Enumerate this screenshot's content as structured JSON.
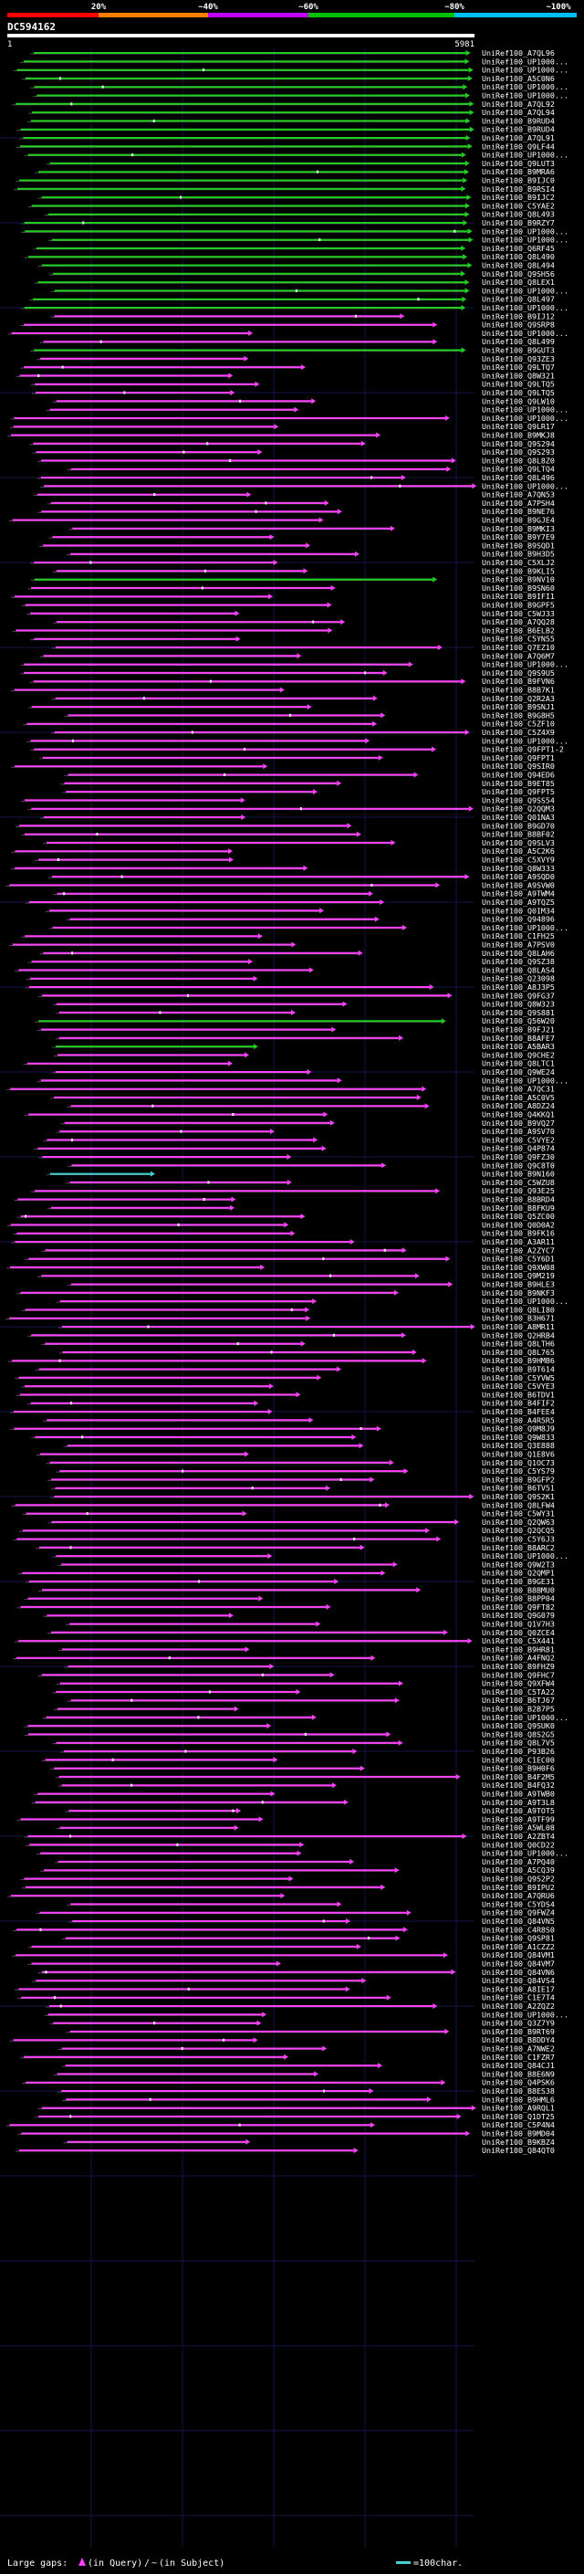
{
  "title": "DC594162",
  "scale": {
    "labels": [
      "20%",
      "~40%",
      "~60%",
      "~80%",
      "~100%"
    ],
    "colors": [
      "#ff0000",
      "#ff8000",
      "#c000ff",
      "#00c000",
      "#00c0ff"
    ]
  },
  "query_ruler": {
    "start": "1",
    "end": "5981"
  },
  "colors": {
    "background": "#000000",
    "grid": "#15154a",
    "ruler": "#ffffff",
    "text": "#ffffff",
    "magenta": "#ff40ff",
    "green": "#20d020",
    "cyan": "#40d0d0",
    "gap": "#606060"
  },
  "legend": {
    "large_gaps_label": "Large gaps:",
    "in_query": "(in Query)",
    "separator": "/",
    "in_subject": "(in Subject)",
    "scale_label": "=100char."
  },
  "hits": [
    {
      "label": "UniRef100_A7QL96",
      "color": "green"
    },
    {
      "label": "UniRef100_UP1000...",
      "color": "green"
    },
    {
      "label": "UniRef100_UP1000...",
      "color": "green"
    },
    {
      "label": "UniRef100_A5C0N6",
      "color": "green"
    },
    {
      "label": "UniRef100_UP1000...",
      "color": "green"
    },
    {
      "label": "UniRef100_UP1000...",
      "color": "green"
    },
    {
      "label": "UniRef100_A7QL92",
      "color": "green"
    },
    {
      "label": "UniRef100_A7QL94",
      "color": "green"
    },
    {
      "label": "UniRef100_B9RUD4",
      "color": "green"
    },
    {
      "label": "UniRef100_B9RUD4",
      "color": "green"
    },
    {
      "label": "UniRef100_A7QL91",
      "color": "green"
    },
    {
      "label": "UniRef100_Q9LF44",
      "color": "green"
    },
    {
      "label": "UniRef100_UP1000...",
      "color": "green"
    },
    {
      "label": "UniRef100_Q9LUT3",
      "color": "green"
    },
    {
      "label": "UniRef100_B9MRA6",
      "color": "green"
    },
    {
      "label": "UniRef100_B9IJC0",
      "color": "green"
    },
    {
      "label": "UniRef100_B9RSI4",
      "color": "green"
    },
    {
      "label": "UniRef100_B9IJC2",
      "color": "green"
    },
    {
      "label": "UniRef100_C5YAE2",
      "color": "green"
    },
    {
      "label": "UniRef100_Q8L493",
      "color": "green"
    },
    {
      "label": "UniRef100_B9RZY7",
      "color": "green"
    },
    {
      "label": "UniRef100_UP1000...",
      "color": "green"
    },
    {
      "label": "UniRef100_UP1000...",
      "color": "green"
    },
    {
      "label": "UniRef100_Q6RF45",
      "color": "green"
    },
    {
      "label": "UniRef100_Q8L490",
      "color": "green"
    },
    {
      "label": "UniRef100_Q8L494",
      "color": "green"
    },
    {
      "label": "UniRef100_Q9SH56",
      "color": "green"
    },
    {
      "label": "UniRef100_Q8LEX1",
      "color": "green"
    },
    {
      "label": "UniRef100_UP1000...",
      "color": "green"
    },
    {
      "label": "UniRef100_Q8L497",
      "color": "green"
    },
    {
      "label": "UniRef100_UP1000...",
      "color": "green"
    },
    {
      "label": "UniRef100_B9IJ12",
      "color": "magenta"
    },
    {
      "label": "UniRef100_Q9SRP8",
      "color": "magenta"
    },
    {
      "label": "UniRef100_UP1000...",
      "color": "magenta"
    },
    {
      "label": "UniRef100_Q8L499",
      "color": "magenta"
    },
    {
      "label": "UniRef100_B9GUT3",
      "color": "green"
    },
    {
      "label": "UniRef100_Q93ZE3",
      "color": "magenta"
    },
    {
      "label": "UniRef100_Q9LTQ7",
      "color": "magenta"
    },
    {
      "label": "UniRef100_Q8W321",
      "color": "magenta"
    },
    {
      "label": "UniRef100_Q9LTQ5",
      "color": "magenta"
    },
    {
      "label": "UniRef100_Q9LTQ5",
      "color": "magenta"
    },
    {
      "label": "UniRef100_Q9LW10",
      "color": "magenta"
    },
    {
      "label": "UniRef100_UP1000...",
      "color": "magenta"
    },
    {
      "label": "UniRef100_UP1000...",
      "color": "magenta"
    },
    {
      "label": "UniRef100_Q9LR17",
      "color": "magenta"
    },
    {
      "label": "UniRef100_B9MKJ8",
      "color": "magenta"
    },
    {
      "label": "UniRef100_Q9S294",
      "color": "magenta"
    },
    {
      "label": "UniRef100_Q9S293",
      "color": "magenta"
    },
    {
      "label": "UniRef100_Q8L8Z0",
      "color": "magenta"
    },
    {
      "label": "UniRef100_Q9LTQ4",
      "color": "magenta"
    },
    {
      "label": "UniRef100_Q8L496",
      "color": "magenta"
    },
    {
      "label": "UniRef100_UP1000...",
      "color": "magenta"
    },
    {
      "label": "UniRef100_A7QN53",
      "color": "magenta"
    },
    {
      "label": "UniRef100_A7PSH4",
      "color": "magenta"
    },
    {
      "label": "UniRef100_B9NE76",
      "color": "magenta"
    },
    {
      "label": "UniRef100_B9GJE4",
      "color": "magenta"
    },
    {
      "label": "UniRef100_B9MKI3",
      "color": "magenta"
    },
    {
      "label": "UniRef100_B9Y7E9",
      "color": "magenta"
    },
    {
      "label": "UniRef100_B9SQD1",
      "color": "magenta"
    },
    {
      "label": "UniRef100_B9H3D5",
      "color": "magenta"
    },
    {
      "label": "UniRef100_C5XLJ2",
      "color": "magenta"
    },
    {
      "label": "UniRef100_B9KLI5",
      "color": "magenta"
    },
    {
      "label": "UniRef100_B9NV10",
      "color": "green"
    },
    {
      "label": "UniRef100_B9SN60",
      "color": "magenta"
    },
    {
      "label": "UniRef100_B9IFI1",
      "color": "magenta"
    },
    {
      "label": "UniRef100_B9GPF5",
      "color": "magenta"
    },
    {
      "label": "UniRef100_C5WJ33",
      "color": "magenta"
    },
    {
      "label": "UniRef100_A7QQ28",
      "color": "magenta"
    },
    {
      "label": "UniRef100_B6ELB2",
      "color": "magenta"
    },
    {
      "label": "UniRef100_C5YN55",
      "color": "magenta"
    },
    {
      "label": "UniRef100_Q7EZ10",
      "color": "magenta"
    },
    {
      "label": "UniRef100_A7Q6M7",
      "color": "magenta"
    },
    {
      "label": "UniRef100_UP1000...",
      "color": "magenta"
    },
    {
      "label": "UniRef100_Q9S9U5",
      "color": "magenta"
    },
    {
      "label": "UniRef100_B9FVN6",
      "color": "magenta"
    },
    {
      "label": "UniRef100_B8B7K1",
      "color": "magenta"
    },
    {
      "label": "UniRef100_Q2R2A3",
      "color": "magenta"
    },
    {
      "label": "UniRef100_B9SNJ1",
      "color": "magenta"
    },
    {
      "label": "UniRef100_B9G8H5",
      "color": "magenta"
    },
    {
      "label": "UniRef100_C5ZF10",
      "color": "magenta"
    },
    {
      "label": "UniRef100_C5Z4X9",
      "color": "magenta"
    },
    {
      "label": "UniRef100_UP1000...",
      "color": "magenta"
    },
    {
      "label": "UniRef100_Q9FPT1-2",
      "color": "magenta"
    },
    {
      "label": "UniRef100_Q9FPT1",
      "color": "magenta"
    },
    {
      "label": "UniRef100_Q9SIR0",
      "color": "magenta"
    },
    {
      "label": "UniRef100_Q94ED6",
      "color": "magenta"
    },
    {
      "label": "UniRef100_B9ET85",
      "color": "magenta"
    },
    {
      "label": "UniRef100_Q9FPT5",
      "color": "magenta"
    },
    {
      "label": "UniRef100_Q9SS54",
      "color": "magenta"
    },
    {
      "label": "UniRef100_Q2QQM3",
      "color": "magenta"
    },
    {
      "label": "UniRef100_Q01NA3",
      "color": "magenta"
    },
    {
      "label": "UniRef100_B9GD70",
      "color": "magenta"
    },
    {
      "label": "UniRef100_B8BF02",
      "color": "magenta"
    },
    {
      "label": "UniRef100_Q9SLV3",
      "color": "magenta"
    },
    {
      "label": "UniRef100_A5C2K6",
      "color": "magenta"
    },
    {
      "label": "UniRef100_C5XVY9",
      "color": "magenta"
    },
    {
      "label": "UniRef100_Q8W333",
      "color": "magenta"
    },
    {
      "label": "UniRef100_A9SQD0",
      "color": "magenta"
    },
    {
      "label": "UniRef100_A9SVW0",
      "color": "magenta"
    },
    {
      "label": "UniRef100_A9TWM4",
      "color": "magenta"
    },
    {
      "label": "UniRef100_A9TQZ5",
      "color": "magenta"
    },
    {
      "label": "UniRef100_Q0IM34",
      "color": "magenta"
    },
    {
      "label": "UniRef100_Q94896",
      "color": "magenta"
    },
    {
      "label": "UniRef100_UP1000...",
      "color": "magenta"
    },
    {
      "label": "UniRef100_C1FH25",
      "color": "magenta"
    },
    {
      "label": "UniRef100_A7PSV0",
      "color": "magenta"
    },
    {
      "label": "UniRef100_Q8LAH6",
      "color": "magenta"
    },
    {
      "label": "UniRef100_Q9SZ38",
      "color": "magenta"
    },
    {
      "label": "UniRef100_Q8LAS4",
      "color": "magenta"
    },
    {
      "label": "UniRef100_Q23098",
      "color": "magenta"
    },
    {
      "label": "UniRef100_A8J3P5",
      "color": "magenta"
    },
    {
      "label": "UniRef100_Q9FG37",
      "color": "magenta"
    },
    {
      "label": "UniRef100_Q8W323",
      "color": "magenta"
    },
    {
      "label": "UniRef100_Q9S881",
      "color": "magenta"
    },
    {
      "label": "UniRef100_Q56W20",
      "color": "green"
    },
    {
      "label": "UniRef100_B9FJ21",
      "color": "magenta"
    },
    {
      "label": "UniRef100_B8AFE7",
      "color": "magenta"
    },
    {
      "label": "UniRef100_A5BAR3",
      "color": "green"
    },
    {
      "label": "UniRef100_Q9CHE2",
      "color": "magenta"
    },
    {
      "label": "UniRef100_Q8LTC1",
      "color": "magenta"
    },
    {
      "label": "UniRef100_Q9WE24",
      "color": "magenta"
    },
    {
      "label": "UniRef100_UP1000...",
      "color": "magenta"
    },
    {
      "label": "UniRef100_A7QC31",
      "color": "magenta"
    },
    {
      "label": "UniRef100_A5C0V5",
      "color": "magenta"
    },
    {
      "label": "UniRef100_A8DZ24",
      "color": "magenta"
    },
    {
      "label": "UniRef100_Q4KKQ1",
      "color": "magenta"
    },
    {
      "label": "UniRef100_B9VQ27",
      "color": "magenta"
    },
    {
      "label": "UniRef100_A9SV70",
      "color": "magenta"
    },
    {
      "label": "UniRef100_C5VYE2",
      "color": "magenta"
    },
    {
      "label": "UniRef100_Q4P874",
      "color": "magenta"
    },
    {
      "label": "UniRef100_Q9FZ30",
      "color": "magenta"
    },
    {
      "label": "UniRef100_Q9C8T0",
      "color": "magenta"
    },
    {
      "label": "UniRef100_B9N160",
      "color": "cyan"
    },
    {
      "label": "UniRef100_C5WZU8",
      "color": "magenta"
    },
    {
      "label": "UniRef100_Q93E25",
      "color": "magenta"
    },
    {
      "label": "UniRef100_B8BRD4",
      "color": "magenta"
    },
    {
      "label": "UniRef100_B8FKU9",
      "color": "magenta"
    },
    {
      "label": "UniRef100_Q5ZC00",
      "color": "magenta"
    },
    {
      "label": "UniRef100_Q0D0A2",
      "color": "magenta"
    },
    {
      "label": "UniRef100_B9FK16",
      "color": "magenta"
    },
    {
      "label": "UniRef100_A3AR11",
      "color": "magenta"
    },
    {
      "label": "UniRef100_A2ZYC7",
      "color": "magenta"
    },
    {
      "label": "UniRef100_C5Y6D1",
      "color": "magenta"
    },
    {
      "label": "UniRef100_Q9XW08",
      "color": "magenta"
    },
    {
      "label": "UniRef100_Q9M219",
      "color": "magenta"
    },
    {
      "label": "UniRef100_B9HLE3",
      "color": "magenta"
    },
    {
      "label": "UniRef100_B9NKF3",
      "color": "magenta"
    },
    {
      "label": "UniRef100_UP1000...",
      "color": "magenta"
    },
    {
      "label": "UniRef100_Q8LI80",
      "color": "magenta"
    },
    {
      "label": "UniRef100_B3H671",
      "color": "magenta"
    },
    {
      "label": "UniRef100_A8MR11",
      "color": "magenta"
    },
    {
      "label": "UniRef100_Q2HRB4",
      "color": "magenta"
    },
    {
      "label": "UniRef100_Q8LTH6",
      "color": "magenta"
    },
    {
      "label": "UniRef100_Q8L765",
      "color": "magenta"
    },
    {
      "label": "UniRef100_B9HMB6",
      "color": "magenta"
    },
    {
      "label": "UniRef100_B9T614",
      "color": "magenta"
    },
    {
      "label": "UniRef100_C5YVW5",
      "color": "magenta"
    },
    {
      "label": "UniRef100_C5VYE3",
      "color": "magenta"
    },
    {
      "label": "UniRef100_B6TDV1",
      "color": "magenta"
    },
    {
      "label": "UniRef100_B4FIF2",
      "color": "magenta"
    },
    {
      "label": "UniRef100_B4FEE4",
      "color": "magenta"
    },
    {
      "label": "UniRef100_A4R5R5",
      "color": "magenta"
    },
    {
      "label": "UniRef100_Q9M8J9",
      "color": "magenta"
    },
    {
      "label": "UniRef100_Q9W833",
      "color": "magenta"
    },
    {
      "label": "UniRef100_Q3E888",
      "color": "magenta"
    },
    {
      "label": "UniRef100_Q1E8V6",
      "color": "magenta"
    },
    {
      "label": "UniRef100_Q1OC73",
      "color": "magenta"
    },
    {
      "label": "UniRef100_C5YS79",
      "color": "magenta"
    },
    {
      "label": "UniRef100_B9GFP2",
      "color": "magenta"
    },
    {
      "label": "UniRef100_B6TV51",
      "color": "magenta"
    },
    {
      "label": "UniRef100_Q9S2K1",
      "color": "magenta"
    },
    {
      "label": "UniRef100_Q8LFW4",
      "color": "magenta"
    },
    {
      "label": "UniRef100_C5WY31",
      "color": "magenta"
    },
    {
      "label": "UniRef100_Q2QW63",
      "color": "magenta"
    },
    {
      "label": "UniRef100_Q2QCQ5",
      "color": "magenta"
    },
    {
      "label": "UniRef100_C5Y6J3",
      "color": "magenta"
    },
    {
      "label": "UniRef100_B8ARC2",
      "color": "magenta"
    },
    {
      "label": "UniRef100_UP1000...",
      "color": "magenta"
    },
    {
      "label": "UniRef100_Q9W2T3",
      "color": "magenta"
    },
    {
      "label": "UniRef100_Q2QMP1",
      "color": "magenta"
    },
    {
      "label": "UniRef100_B9GE31",
      "color": "magenta"
    },
    {
      "label": "UniRef100_B8BMU0",
      "color": "magenta"
    },
    {
      "label": "UniRef100_B8PP04",
      "color": "magenta"
    },
    {
      "label": "UniRef100_Q9FT82",
      "color": "magenta"
    },
    {
      "label": "UniRef100_Q9G079",
      "color": "magenta"
    },
    {
      "label": "UniRef100_Q1V7H3",
      "color": "magenta"
    },
    {
      "label": "UniRef100_Q0ZCE4",
      "color": "magenta"
    },
    {
      "label": "UniRef100_C5X441",
      "color": "magenta"
    },
    {
      "label": "UniRef100_B9HR81",
      "color": "magenta"
    },
    {
      "label": "UniRef100_A4FNQ2",
      "color": "magenta"
    },
    {
      "label": "UniRef100_B9FHZ9",
      "color": "magenta"
    },
    {
      "label": "UniRef100_Q9FHC7",
      "color": "magenta"
    },
    {
      "label": "UniRef100_Q9XFW4",
      "color": "magenta"
    },
    {
      "label": "UniRef100_C5TA22",
      "color": "magenta"
    },
    {
      "label": "UniRef100_B6TJ67",
      "color": "magenta"
    },
    {
      "label": "UniRef100_B2B7P5",
      "color": "magenta"
    },
    {
      "label": "UniRef100_UP1000...",
      "color": "magenta"
    },
    {
      "label": "UniRef100_Q9SUK0",
      "color": "magenta"
    },
    {
      "label": "UniRef100_Q8S2G5",
      "color": "magenta"
    },
    {
      "label": "UniRef100_Q8L7V5",
      "color": "magenta"
    },
    {
      "label": "UniRef100_P93B26",
      "color": "magenta"
    },
    {
      "label": "UniRef100_C1EC00",
      "color": "magenta"
    },
    {
      "label": "UniRef100_B9H0F6",
      "color": "magenta"
    },
    {
      "label": "UniRef100_B4F2M5",
      "color": "magenta"
    },
    {
      "label": "UniRef100_B4FQ32",
      "color": "magenta"
    },
    {
      "label": "UniRef100_A9TWB0",
      "color": "magenta"
    },
    {
      "label": "UniRef100_A9T3L8",
      "color": "magenta"
    },
    {
      "label": "UniRef100_A9TOT5",
      "color": "magenta"
    },
    {
      "label": "UniRef100_A9TF99",
      "color": "magenta"
    },
    {
      "label": "UniRef100_A5WL08",
      "color": "magenta"
    },
    {
      "label": "UniRef100_A2ZBT4",
      "color": "magenta"
    },
    {
      "label": "UniRef100_Q0CD22",
      "color": "magenta"
    },
    {
      "label": "UniRef100_UP1000...",
      "color": "magenta"
    },
    {
      "label": "UniRef100_A7PQ40",
      "color": "magenta"
    },
    {
      "label": "UniRef100_A5CQ39",
      "color": "magenta"
    },
    {
      "label": "UniRef100_Q9S2P2",
      "color": "magenta"
    },
    {
      "label": "UniRef100_B9IPU2",
      "color": "magenta"
    },
    {
      "label": "UniRef100_A7QRU6",
      "color": "magenta"
    },
    {
      "label": "UniRef100_C5YDS4",
      "color": "magenta"
    },
    {
      "label": "UniRef100_Q9FWZ4",
      "color": "magenta"
    },
    {
      "label": "UniRef100_Q84VN5",
      "color": "magenta"
    },
    {
      "label": "UniRef100_C4R8S0",
      "color": "magenta"
    },
    {
      "label": "UniRef100_Q9SP81",
      "color": "magenta"
    },
    {
      "label": "UniRef100_A1CZZ2",
      "color": "magenta"
    },
    {
      "label": "UniRef100_Q84VM1",
      "color": "magenta"
    },
    {
      "label": "UniRef100_Q84VM7",
      "color": "magenta"
    },
    {
      "label": "UniRef100_Q84VN6",
      "color": "magenta"
    },
    {
      "label": "UniRef100_Q84VS4",
      "color": "magenta"
    },
    {
      "label": "UniRef100_A8IE17",
      "color": "magenta"
    },
    {
      "label": "UniRef100_C1E7T4",
      "color": "magenta"
    },
    {
      "label": "UniRef100_A2ZQZ2",
      "color": "magenta"
    },
    {
      "label": "UniRef100_UP1000...",
      "color": "magenta"
    },
    {
      "label": "UniRef100_Q3Z7Y9",
      "color": "magenta"
    },
    {
      "label": "UniRef100_B9RT69",
      "color": "magenta"
    },
    {
      "label": "UniRef100_B8DDY4",
      "color": "magenta"
    },
    {
      "label": "UniRef100_A7NWE2",
      "color": "magenta"
    },
    {
      "label": "UniRef100_C1FZR7",
      "color": "magenta"
    },
    {
      "label": "UniRef100_Q84CJ1",
      "color": "magenta"
    },
    {
      "label": "UniRef100_B8E6N9",
      "color": "magenta"
    },
    {
      "label": "UniRef100_Q4PSK6",
      "color": "magenta"
    },
    {
      "label": "UniRef100_B8ES38",
      "color": "magenta"
    },
    {
      "label": "UniRef100_B9HML6",
      "color": "magenta"
    },
    {
      "label": "UniRef100_A9RQL1",
      "color": "magenta"
    },
    {
      "label": "UniRef100_Q1DT25",
      "color": "magenta"
    },
    {
      "label": "UniRef100_C5P4N4",
      "color": "magenta"
    },
    {
      "label": "UniRef100_B9MD04",
      "color": "magenta"
    },
    {
      "label": "UniRef100_B9KBZ4",
      "color": "magenta"
    },
    {
      "label": "UniRef100_Q84QT0",
      "color": "magenta"
    }
  ]
}
